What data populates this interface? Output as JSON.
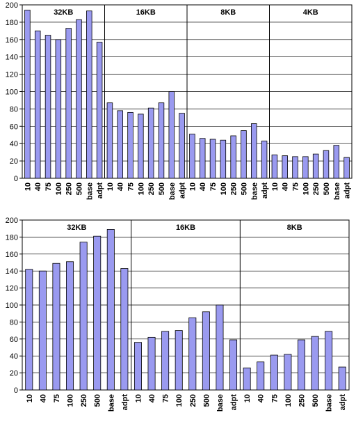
{
  "chart_data": [
    {
      "type": "bar",
      "title": "",
      "xlabel": "",
      "ylabel": "",
      "ylim": [
        0,
        200
      ],
      "yticks": [
        0,
        20,
        40,
        60,
        80,
        100,
        120,
        140,
        160,
        180,
        200
      ],
      "grid": true,
      "bar_color": "#9a9af0",
      "bar_edge": "#000000",
      "groups": [
        {
          "label": "32KB",
          "categories": [
            "10",
            "40",
            "75",
            "100",
            "250",
            "500",
            "base",
            "adpt"
          ],
          "values": [
            194,
            170,
            165,
            160,
            173,
            183,
            193,
            157
          ]
        },
        {
          "label": "16KB",
          "categories": [
            "10",
            "40",
            "75",
            "100",
            "250",
            "500",
            "base",
            "adpt"
          ],
          "values": [
            87,
            78,
            76,
            74,
            81,
            87,
            100,
            75
          ]
        },
        {
          "label": "8KB",
          "categories": [
            "10",
            "40",
            "75",
            "100",
            "250",
            "500",
            "base",
            "adpt"
          ],
          "values": [
            51,
            46,
            45,
            44,
            49,
            55,
            63,
            43
          ]
        },
        {
          "label": "4KB",
          "categories": [
            "10",
            "40",
            "75",
            "100",
            "250",
            "500",
            "base",
            "adpt"
          ],
          "values": [
            27,
            26,
            25,
            25,
            28,
            32,
            38,
            24
          ]
        }
      ]
    },
    {
      "type": "bar",
      "title": "",
      "xlabel": "",
      "ylabel": "",
      "ylim": [
        0,
        200
      ],
      "yticks": [
        0,
        20,
        40,
        60,
        80,
        100,
        120,
        140,
        160,
        180,
        200
      ],
      "grid": true,
      "bar_color": "#9a9af0",
      "bar_edge": "#000000",
      "groups": [
        {
          "label": "32KB",
          "categories": [
            "10",
            "40",
            "75",
            "100",
            "250",
            "500",
            "base",
            "adpt"
          ],
          "values": [
            142,
            140,
            149,
            151,
            174,
            181,
            189,
            143
          ]
        },
        {
          "label": "16KB",
          "categories": [
            "10",
            "40",
            "75",
            "100",
            "250",
            "500",
            "base",
            "adpt"
          ],
          "values": [
            56,
            62,
            69,
            70,
            85,
            92,
            100,
            59
          ]
        },
        {
          "label": "8KB",
          "categories": [
            "10",
            "40",
            "75",
            "100",
            "250",
            "500",
            "base",
            "adpt"
          ],
          "values": [
            26,
            33,
            41,
            42,
            59,
            63,
            69,
            27
          ]
        }
      ]
    }
  ]
}
